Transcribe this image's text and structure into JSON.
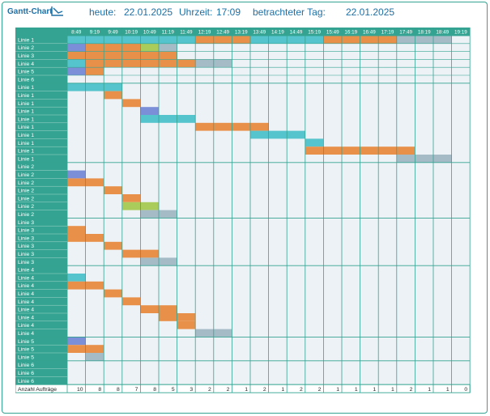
{
  "header": {
    "title": "Gantt-Chart",
    "today_label": "heute:",
    "today_value": "22.01.2025",
    "time_label": "Uhrzeit:",
    "time_value": "17:09",
    "viewed_label": "betrachteter Tag:",
    "viewed_value": "22.01.2025"
  },
  "colors": {
    "teal": "#34a391",
    "cyan": "#55c4cc",
    "orange": "#e8904a",
    "purple": "#7b8fd8",
    "green": "#a9cc5a",
    "gray": "#a5bcc7",
    "panel_bg": "#edf2f6",
    "line": "#34a391"
  },
  "times": [
    "8:49",
    "9:19",
    "9:49",
    "10:19",
    "10:49",
    "11:19",
    "11:49",
    "12:19",
    "12:49",
    "13:19",
    "13:49",
    "14:19",
    "14:49",
    "15:19",
    "15:49",
    "16:19",
    "16:49",
    "17:19",
    "17:49",
    "18:19",
    "18:49",
    "19:19"
  ],
  "footer_label": "Anzahl Aufträge",
  "counts": [
    10,
    8,
    8,
    7,
    8,
    5,
    3,
    2,
    2,
    1,
    2,
    1,
    2,
    2,
    1,
    1,
    1,
    1,
    2,
    1,
    1,
    0
  ],
  "rows": [
    {
      "label": "Linie 1",
      "bars": [
        [
          "cyan",
          0,
          7
        ],
        [
          "orange",
          7,
          3
        ],
        [
          "cyan",
          10,
          4
        ],
        [
          "orange",
          14,
          4
        ],
        [
          "gray",
          18,
          3
        ]
      ]
    },
    {
      "label": "Linie 2",
      "bars": [
        [
          "purple",
          0,
          1
        ],
        [
          "orange",
          1,
          3
        ],
        [
          "green",
          4,
          1
        ],
        [
          "gray",
          5,
          1
        ]
      ]
    },
    {
      "label": "Linie 3",
      "bars": [
        [
          "orange",
          0,
          6
        ]
      ]
    },
    {
      "label": "Linie 4",
      "bars": [
        [
          "cyan",
          0,
          1
        ],
        [
          "orange",
          1,
          6
        ],
        [
          "gray",
          7,
          2
        ]
      ]
    },
    {
      "label": "Linie 5",
      "bars": [
        [
          "purple",
          0,
          1
        ],
        [
          "orange",
          1,
          1
        ]
      ]
    },
    {
      "label": "Linie 6",
      "bars": []
    },
    {
      "label": "Linie 1",
      "bars": [
        [
          "cyan",
          0,
          3
        ]
      ]
    },
    {
      "label": "Linie 1",
      "bars": [
        [
          "orange",
          2,
          1
        ]
      ]
    },
    {
      "label": "Linie 1",
      "bars": [
        [
          "orange",
          3,
          1
        ]
      ]
    },
    {
      "label": "Linie 1",
      "bars": [
        [
          "purple",
          4,
          1
        ]
      ]
    },
    {
      "label": "Linie 1",
      "bars": [
        [
          "cyan",
          4,
          3
        ]
      ]
    },
    {
      "label": "Linie 1",
      "bars": [
        [
          "orange",
          7,
          4
        ]
      ]
    },
    {
      "label": "Linie 1",
      "bars": [
        [
          "cyan",
          10,
          3
        ]
      ]
    },
    {
      "label": "Linie 1",
      "bars": [
        [
          "cyan",
          13,
          1
        ]
      ]
    },
    {
      "label": "Linie 1",
      "bars": [
        [
          "orange",
          13,
          6
        ]
      ]
    },
    {
      "label": "Linie 1",
      "bars": [
        [
          "gray",
          18,
          3
        ]
      ]
    },
    {
      "label": "Linie 2",
      "bars": []
    },
    {
      "label": "Linie 2",
      "bars": [
        [
          "purple",
          0,
          1
        ]
      ]
    },
    {
      "label": "Linie 2",
      "bars": [
        [
          "orange",
          0,
          1
        ],
        [
          "orange",
          1,
          1
        ]
      ]
    },
    {
      "label": "Linie 2",
      "bars": [
        [
          "orange",
          2,
          1
        ]
      ]
    },
    {
      "label": "Linie 2",
      "bars": [
        [
          "orange",
          3,
          1
        ]
      ]
    },
    {
      "label": "Linie 2",
      "bars": [
        [
          "green",
          3,
          2
        ]
      ]
    },
    {
      "label": "Linie 2",
      "bars": [
        [
          "gray",
          4,
          2
        ]
      ]
    },
    {
      "label": "Linie 3",
      "bars": []
    },
    {
      "label": "Linie 3",
      "bars": [
        [
          "orange",
          0,
          1
        ]
      ]
    },
    {
      "label": "Linie 3",
      "bars": [
        [
          "orange",
          0,
          1
        ],
        [
          "orange",
          1,
          1
        ]
      ]
    },
    {
      "label": "Linie 3",
      "bars": [
        [
          "orange",
          2,
          1
        ]
      ]
    },
    {
      "label": "Linie 3",
      "bars": [
        [
          "orange",
          3,
          2
        ]
      ]
    },
    {
      "label": "Linie 3",
      "bars": [
        [
          "gray",
          4,
          2
        ]
      ]
    },
    {
      "label": "Linie 4",
      "bars": []
    },
    {
      "label": "Linie 4",
      "bars": [
        [
          "cyan",
          0,
          1
        ]
      ]
    },
    {
      "label": "Linie 4",
      "bars": [
        [
          "orange",
          0,
          2
        ]
      ]
    },
    {
      "label": "Linie 4",
      "bars": [
        [
          "orange",
          2,
          1
        ]
      ]
    },
    {
      "label": "Linie 4",
      "bars": [
        [
          "orange",
          3,
          1
        ]
      ]
    },
    {
      "label": "Linie 4",
      "bars": [
        [
          "orange",
          4,
          2
        ]
      ]
    },
    {
      "label": "Linie 4",
      "bars": [
        [
          "orange",
          5,
          2
        ]
      ]
    },
    {
      "label": "Linie 4",
      "bars": [
        [
          "orange",
          6,
          1
        ]
      ]
    },
    {
      "label": "Linie 4",
      "bars": [
        [
          "gray",
          7,
          2
        ]
      ]
    },
    {
      "label": "Linie 5",
      "bars": [
        [
          "purple",
          0,
          1
        ]
      ]
    },
    {
      "label": "Linie 5",
      "bars": [
        [
          "orange",
          0,
          2
        ]
      ]
    },
    {
      "label": "Linie 5",
      "bars": [
        [
          "gray",
          1,
          1
        ]
      ]
    },
    {
      "label": "Linie 6",
      "bars": []
    },
    {
      "label": "Linie 6",
      "bars": []
    },
    {
      "label": "Linie 6",
      "bars": []
    }
  ]
}
